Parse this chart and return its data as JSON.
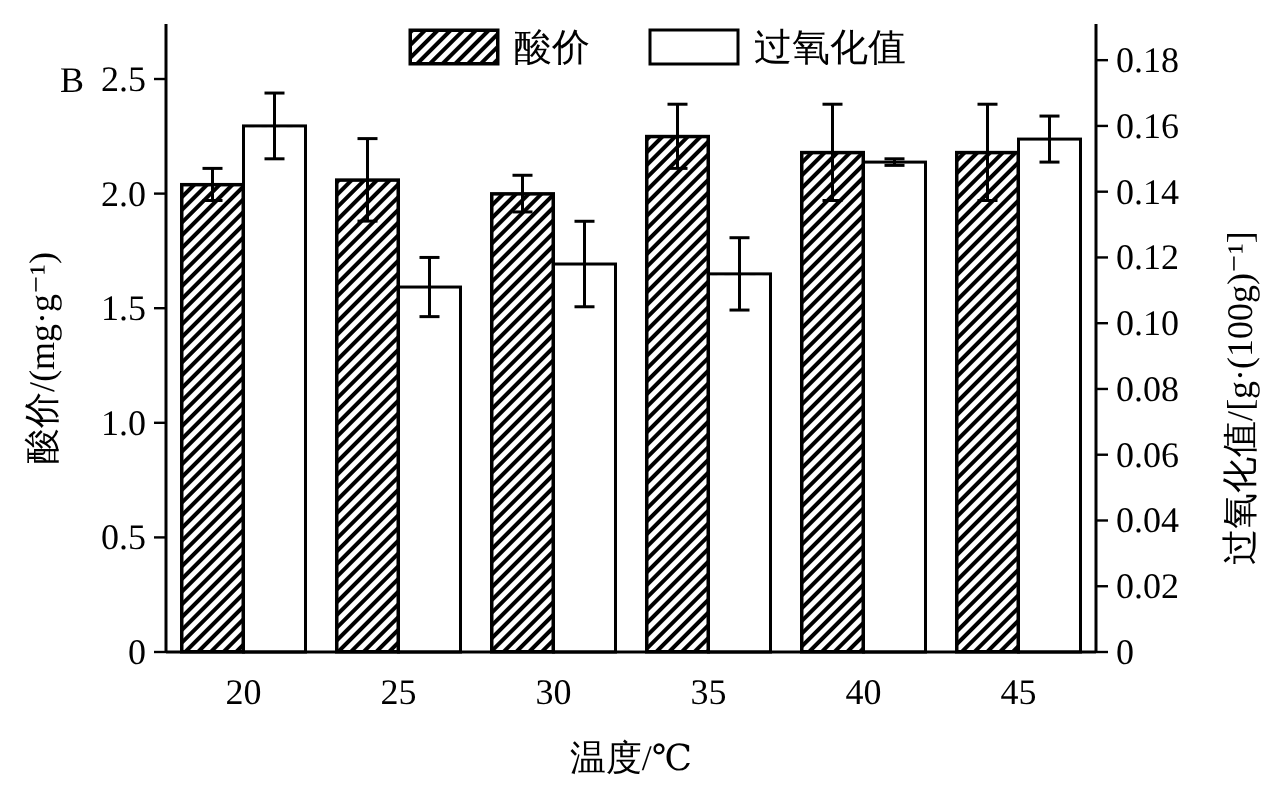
{
  "chart_data": {
    "type": "bar",
    "xlabel": "温度/℃",
    "ylabel": "酸价/(mg·g⁻¹)",
    "y2label": "过氧化值/[g·(100g)⁻¹]",
    "annotations": [
      "B"
    ],
    "categories": [
      "20",
      "25",
      "30",
      "35",
      "40",
      "45"
    ],
    "series": [
      {
        "name": "酸价",
        "color": "#000000",
        "values": [
          2.04,
          2.06,
          2.0,
          2.25,
          2.18,
          2.18
        ],
        "errors": [
          0.07,
          0.18,
          0.08,
          0.14,
          0.21,
          0.21
        ]
      },
      {
        "name": "过氧化值",
        "color": "#ffffff",
        "axis": "y2",
        "values": [
          0.16,
          0.111,
          0.118,
          0.115,
          0.149,
          0.156
        ],
        "errors": [
          0.01,
          0.009,
          0.013,
          0.011,
          0.001,
          0.007
        ]
      }
    ],
    "ylim": [
      0,
      2.74
    ],
    "yticks": [
      0,
      0.5,
      {
        "value": 1,
        "label": "1.0"
      },
      1.5,
      {
        "value": 2,
        "label": "2.0"
      },
      2.5
    ],
    "y2lim": [
      0,
      0.191
    ],
    "y2ticks": [
      0,
      0.02,
      0.04,
      0.06,
      0.08,
      {
        "value": 0.1,
        "label": "0.10"
      },
      0.12,
      0.14,
      0.16,
      0.18
    ],
    "legend": "top",
    "grid": false
  }
}
